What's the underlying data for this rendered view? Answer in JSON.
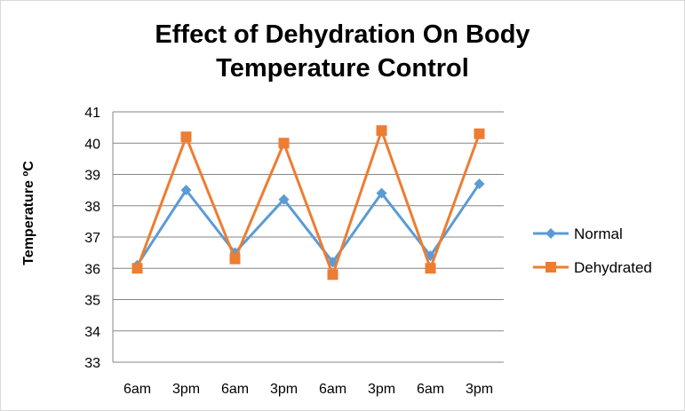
{
  "chart_data": {
    "type": "line",
    "title": "Effect of Dehydration On Body Temperature Control",
    "title_lines": [
      "Effect of Dehydration On Body",
      "Temperature Control"
    ],
    "xlabel": "",
    "ylabel": "Temperature ºC",
    "categories": [
      "6am",
      "3pm",
      "6am",
      "3pm",
      "6am",
      "3pm",
      "6am",
      "3pm"
    ],
    "ylim": [
      33,
      41
    ],
    "yticks": [
      33,
      34,
      35,
      36,
      37,
      38,
      39,
      40,
      41
    ],
    "grid": true,
    "legend": "right",
    "series": [
      {
        "name": "Normal",
        "color": "#5b9bd5",
        "marker": "diamond",
        "values": [
          36.1,
          38.5,
          36.5,
          38.2,
          36.2,
          38.4,
          36.4,
          38.7
        ]
      },
      {
        "name": "Dehydrated",
        "color": "#ed7d31",
        "marker": "square",
        "values": [
          36.0,
          40.2,
          36.3,
          40.0,
          35.8,
          40.4,
          36.0,
          40.3
        ]
      }
    ]
  }
}
